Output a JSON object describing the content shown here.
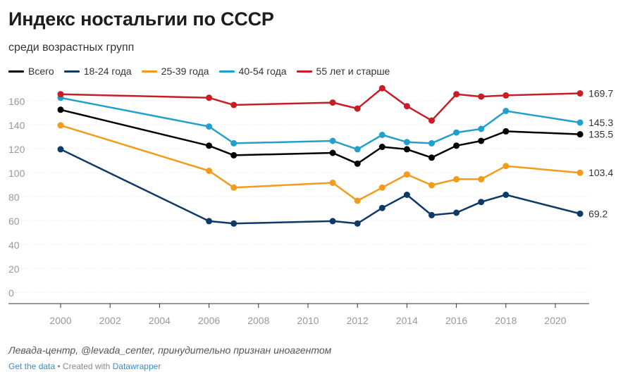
{
  "title": "Индекс ностальгии по СССР",
  "subtitle": "среди возрастных групп",
  "note": "Левада-центр, @levada_center, принудительно признан иноагентом",
  "footer": {
    "get_data": "Get the data",
    "separator": " • Created with ",
    "datawrapper": "Datawrapper"
  },
  "chart_data": {
    "type": "line",
    "x": [
      2000,
      2006,
      2007,
      2011,
      2012,
      2013,
      2014,
      2015,
      2016,
      2017,
      2018,
      2021
    ],
    "xticks": [
      2000,
      2002,
      2004,
      2006,
      2008,
      2010,
      2012,
      2014,
      2016,
      2018,
      2020
    ],
    "yticks": [
      0,
      20,
      40,
      60,
      80,
      100,
      120,
      140,
      160
    ],
    "xlim": [
      1998,
      2022.4
    ],
    "ylim": [
      0,
      180
    ],
    "series": [
      {
        "name": "Всего",
        "color": "#000000",
        "end_label": "135.5",
        "values": [
          156,
          126,
          118,
          120,
          111,
          125,
          123,
          116,
          126,
          130,
          138,
          135.5
        ]
      },
      {
        "name": "18-24 года",
        "color": "#0e3a68",
        "end_label": "69.2",
        "values": [
          123,
          63,
          61,
          63,
          61,
          74,
          85,
          68,
          70,
          79,
          85,
          69.2
        ]
      },
      {
        "name": "25-39 года",
        "color": "#f39c1b",
        "end_label": "103.4",
        "values": [
          143,
          105,
          91,
          95,
          80,
          91,
          102,
          93,
          98,
          98,
          109,
          103.4
        ]
      },
      {
        "name": "40-54 года",
        "color": "#22a0cc",
        "end_label": "145.3",
        "values": [
          166,
          142,
          128,
          130,
          123,
          135,
          129,
          128,
          137,
          140,
          155,
          145.3
        ]
      },
      {
        "name": "55 лет и старше",
        "color": "#c91d26",
        "end_label": "169.7",
        "values": [
          169,
          166,
          160,
          162,
          157,
          174,
          159,
          147,
          169,
          167,
          168,
          169.7
        ]
      }
    ]
  }
}
